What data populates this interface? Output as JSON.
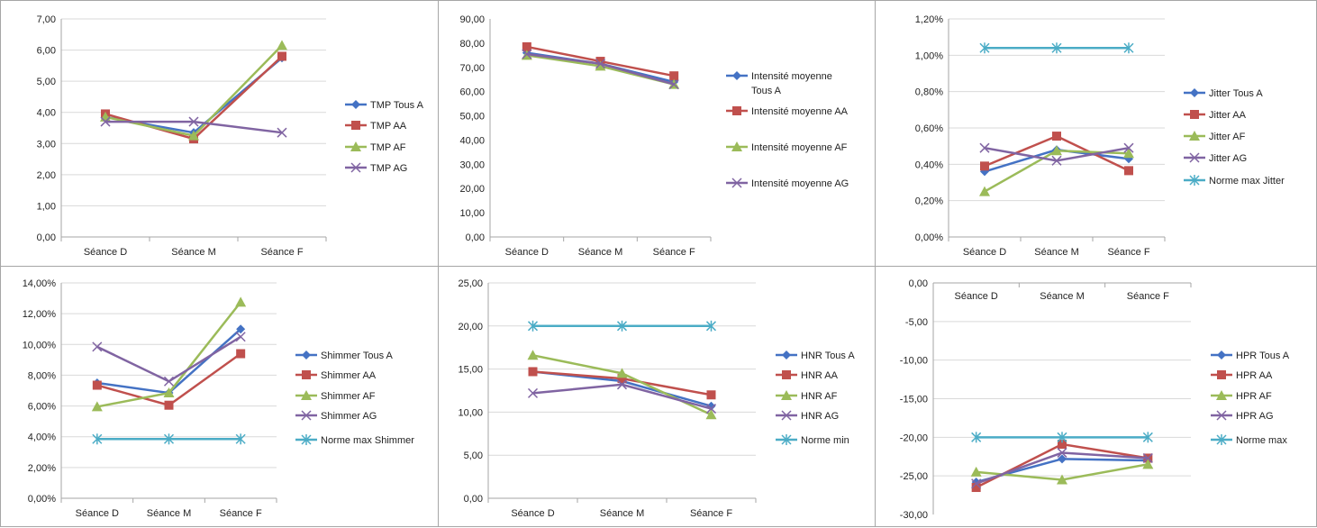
{
  "colors": {
    "tous": "#4472C4",
    "aa": "#C0504D",
    "af": "#9BBB59",
    "ag": "#8064A2",
    "norme": "#4BACC6"
  },
  "chart_data": [
    {
      "id": "tmp",
      "type": "line",
      "categories": [
        "Séance D",
        "Séance M",
        "Séance F"
      ],
      "ylim": [
        0,
        7
      ],
      "yticks": [
        "0,00",
        "1,00",
        "2,00",
        "3,00",
        "4,00",
        "5,00",
        "6,00",
        "7,00"
      ],
      "category_axis": "bottom",
      "grid": true,
      "legend": "right",
      "series": [
        {
          "name": "TMP Tous A",
          "color": "tous",
          "marker": "diamond",
          "values": [
            3.85,
            3.35,
            5.75
          ]
        },
        {
          "name": "TMP AA",
          "color": "aa",
          "marker": "square",
          "values": [
            3.95,
            3.15,
            5.8
          ]
        },
        {
          "name": "TMP AF",
          "color": "af",
          "marker": "triangle",
          "values": [
            3.85,
            3.25,
            6.15
          ]
        },
        {
          "name": "TMP AG",
          "color": "ag",
          "marker": "x",
          "values": [
            3.7,
            3.7,
            3.35
          ]
        }
      ]
    },
    {
      "id": "intensite",
      "type": "line",
      "categories": [
        "Séance D",
        "Séance M",
        "Séance F"
      ],
      "ylim": [
        0,
        90
      ],
      "yticks": [
        "0,00",
        "10,00",
        "20,00",
        "30,00",
        "40,00",
        "50,00",
        "60,00",
        "70,00",
        "80,00",
        "90,00"
      ],
      "category_axis": "bottom",
      "grid": false,
      "legend": "right",
      "series": [
        {
          "name": "Intensité moyenne Tous A",
          "label_lines": [
            "Intensité moyenne",
            "Tous A"
          ],
          "color": "tous",
          "marker": "diamond",
          "values": [
            76,
            71.5,
            64
          ]
        },
        {
          "name": "Intensité moyenne AA",
          "color": "aa",
          "marker": "square",
          "values": [
            78.5,
            72.5,
            66.5
          ]
        },
        {
          "name": "Intensité moyenne AF",
          "color": "af",
          "marker": "triangle",
          "values": [
            75,
            70.5,
            63
          ]
        },
        {
          "name": "Intensité moyenne AG",
          "color": "ag",
          "marker": "x",
          "values": [
            75.5,
            71.5,
            63
          ]
        }
      ]
    },
    {
      "id": "jitter",
      "type": "line",
      "categories": [
        "Séance D",
        "Séance M",
        "Séance F"
      ],
      "ylim": [
        0,
        1.2
      ],
      "yticks": [
        "0,00%",
        "0,20%",
        "0,40%",
        "0,60%",
        "0,80%",
        "1,00%",
        "1,20%"
      ],
      "category_axis": "bottom",
      "grid": true,
      "legend": "right",
      "series": [
        {
          "name": "Jitter Tous A",
          "color": "tous",
          "marker": "diamond",
          "values": [
            0.36,
            0.48,
            0.43
          ]
        },
        {
          "name": "Jitter AA",
          "color": "aa",
          "marker": "square",
          "values": [
            0.39,
            0.555,
            0.365
          ]
        },
        {
          "name": "Jitter AF",
          "color": "af",
          "marker": "triangle",
          "values": [
            0.25,
            0.475,
            0.46
          ]
        },
        {
          "name": "Jitter AG",
          "color": "ag",
          "marker": "x",
          "values": [
            0.49,
            0.42,
            0.49
          ]
        },
        {
          "name": "Norme max  Jitter",
          "color": "norme",
          "marker": "star",
          "values": [
            1.04,
            1.04,
            1.04
          ]
        }
      ]
    },
    {
      "id": "shimmer",
      "type": "line",
      "categories": [
        "Séance D",
        "Séance M",
        "Séance F"
      ],
      "ylim": [
        0,
        14
      ],
      "yticks": [
        "0,00%",
        "2,00%",
        "4,00%",
        "6,00%",
        "8,00%",
        "10,00%",
        "12,00%",
        "14,00%"
      ],
      "category_axis": "bottom",
      "grid": true,
      "legend": "right",
      "series": [
        {
          "name": "Shimmer Tous A",
          "color": "tous",
          "marker": "diamond",
          "values": [
            7.5,
            6.85,
            11.0
          ]
        },
        {
          "name": "Shimmer AA",
          "color": "aa",
          "marker": "square",
          "values": [
            7.35,
            6.05,
            9.4
          ]
        },
        {
          "name": "Shimmer AF",
          "color": "af",
          "marker": "triangle",
          "values": [
            5.95,
            6.85,
            12.75
          ]
        },
        {
          "name": "Shimmer AG",
          "color": "ag",
          "marker": "x",
          "values": [
            9.85,
            7.6,
            10.5
          ]
        },
        {
          "name": "Norme max  Shimmer",
          "color": "norme",
          "marker": "star",
          "values": [
            3.85,
            3.85,
            3.85
          ]
        }
      ]
    },
    {
      "id": "hnr",
      "type": "line",
      "categories": [
        "Séance D",
        "Séance M",
        "Séance F"
      ],
      "ylim": [
        0,
        25
      ],
      "yticks": [
        "0,00",
        "5,00",
        "10,00",
        "15,00",
        "20,00",
        "25,00"
      ],
      "category_axis": "bottom",
      "grid": true,
      "legend": "right",
      "series": [
        {
          "name": "HNR Tous A",
          "color": "tous",
          "marker": "diamond",
          "values": [
            14.7,
            13.6,
            10.7
          ]
        },
        {
          "name": "HNR AA",
          "color": "aa",
          "marker": "square",
          "values": [
            14.7,
            13.9,
            12.0
          ]
        },
        {
          "name": "HNR AF",
          "color": "af",
          "marker": "triangle",
          "values": [
            16.6,
            14.5,
            9.7
          ]
        },
        {
          "name": "HNR AG",
          "color": "ag",
          "marker": "x",
          "values": [
            12.2,
            13.2,
            10.4
          ]
        },
        {
          "name": "Norme  min",
          "color": "norme",
          "marker": "star",
          "values": [
            20,
            20,
            20
          ]
        }
      ]
    },
    {
      "id": "hpr",
      "type": "line",
      "categories": [
        "Séance D",
        "Séance M",
        "Séance F"
      ],
      "ylim": [
        -30,
        0
      ],
      "yticks": [
        "-30,00",
        "-25,00",
        "-20,00",
        "-15,00",
        "-10,00",
        "-5,00",
        "0,00"
      ],
      "category_axis": "top",
      "grid": true,
      "legend": "right",
      "series": [
        {
          "name": "HPR Tous A",
          "color": "tous",
          "marker": "diamond",
          "values": [
            -25.8,
            -22.8,
            -23.0
          ]
        },
        {
          "name": "HPR AA",
          "color": "aa",
          "marker": "square",
          "values": [
            -26.5,
            -20.9,
            -22.7
          ]
        },
        {
          "name": "HPR AF",
          "color": "af",
          "marker": "triangle",
          "values": [
            -24.5,
            -25.5,
            -23.5
          ]
        },
        {
          "name": "HPR AG",
          "color": "ag",
          "marker": "x",
          "values": [
            -26.0,
            -22.0,
            -22.7
          ]
        },
        {
          "name": "Norme  max",
          "color": "norme",
          "marker": "star",
          "values": [
            -20,
            -20,
            -20
          ]
        }
      ]
    }
  ]
}
